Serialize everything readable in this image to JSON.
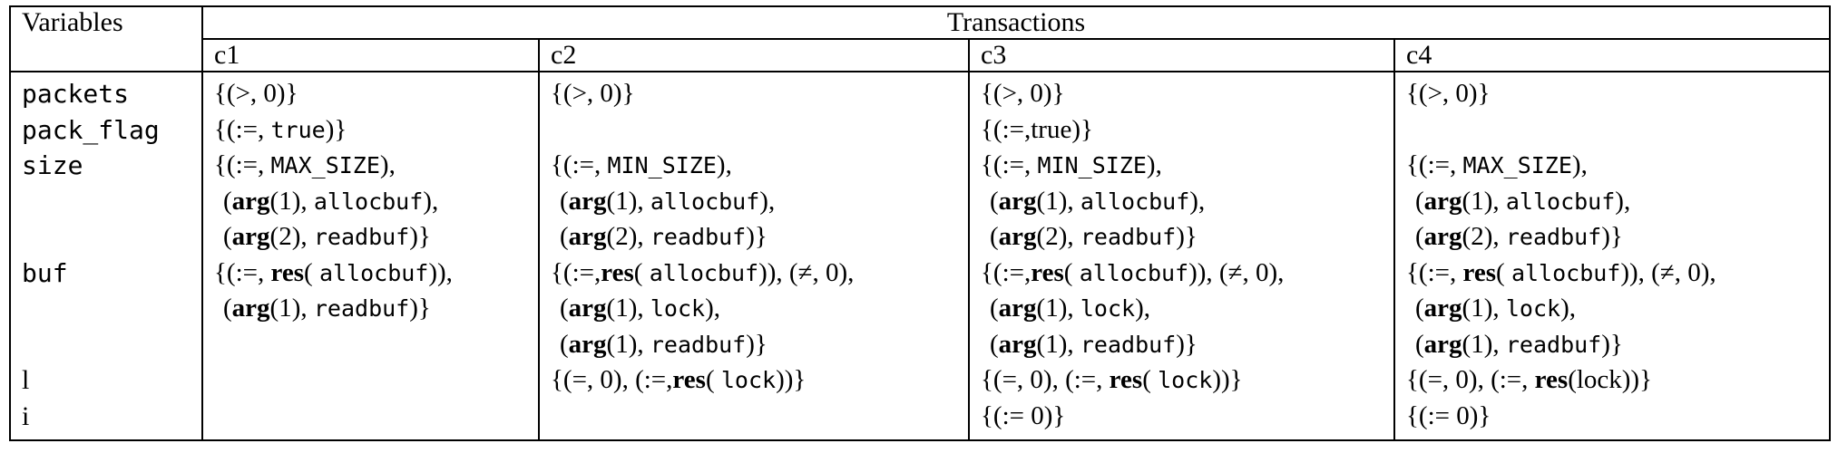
{
  "header": {
    "variables": "Variables",
    "transactions": "Transactions",
    "columns": [
      "c1",
      "c2",
      "c3",
      "c4"
    ]
  },
  "variables": [
    "packets",
    "pack_flag",
    "size",
    "buf",
    "l",
    "i"
  ],
  "cells": {
    "c1": [
      {
        "type": "plain",
        "text": "{(>, 0)}"
      },
      {
        "type": "assign_tt",
        "pre": "{(:=, ",
        "tt": "true",
        "post": ")}"
      },
      {
        "type": "assign_tt",
        "pre": "{(:=, ",
        "tt": "MAX_SIZE",
        "post": "),"
      },
      {
        "type": "arg",
        "open": "(",
        "kw": "arg",
        "mid": "(1), ",
        "tt": "allocbuf",
        "post": "),"
      },
      {
        "type": "arg",
        "open": "(",
        "kw": "arg",
        "mid": "(2), ",
        "tt": "readbuf",
        "post": ")}"
      },
      {
        "type": "res",
        "pre": "{(:=, ",
        "kw": "res",
        "mid": "( ",
        "tt": "allocbuf",
        "post": ")),"
      },
      {
        "type": "arg",
        "open": "(",
        "kw": "arg",
        "mid": "(1), ",
        "tt": "readbuf",
        "post": ")}"
      },
      {
        "type": "blank"
      },
      {
        "type": "blank"
      },
      {
        "type": "blank"
      }
    ],
    "c2": [
      {
        "type": "plain",
        "text": "{(>, 0)}"
      },
      {
        "type": "blank"
      },
      {
        "type": "assign_tt",
        "pre": "{(:=, ",
        "tt": "MIN_SIZE",
        "post": "),"
      },
      {
        "type": "arg",
        "open": "(",
        "kw": "arg",
        "mid": "(1), ",
        "tt": "allocbuf",
        "post": "),"
      },
      {
        "type": "arg",
        "open": "(",
        "kw": "arg",
        "mid": "(2), ",
        "tt": "readbuf",
        "post": ")}"
      },
      {
        "type": "res",
        "pre": "{(:=,",
        "kw": "res",
        "mid": "( ",
        "tt": "allocbuf",
        "post": ")), (≠, 0),"
      },
      {
        "type": "arg",
        "open": "(",
        "kw": "arg",
        "mid": "(1), ",
        "tt": "lock",
        "post": "),"
      },
      {
        "type": "arg",
        "open": "(",
        "kw": "arg",
        "mid": "(1), ",
        "tt": "readbuf",
        "post": ")}"
      },
      {
        "type": "res",
        "pre": "{(=, 0), (:=,",
        "kw": "res",
        "mid": "( ",
        "tt": "lock",
        "post": "))}"
      },
      {
        "type": "blank"
      }
    ],
    "c3": [
      {
        "type": "plain",
        "text": "{(>, 0)}"
      },
      {
        "type": "plain",
        "text": "{(:=,true)}"
      },
      {
        "type": "assign_tt",
        "pre": "{(:=, ",
        "tt": "MIN_SIZE",
        "post": "),"
      },
      {
        "type": "arg",
        "open": "(",
        "kw": "arg",
        "mid": "(1), ",
        "tt": "allocbuf",
        "post": "),"
      },
      {
        "type": "arg",
        "open": "(",
        "kw": "arg",
        "mid": "(2), ",
        "tt": "readbuf",
        "post": ")}"
      },
      {
        "type": "res",
        "pre": "{(:=,",
        "kw": "res",
        "mid": "( ",
        "tt": "allocbuf",
        "post": ")), (≠, 0),"
      },
      {
        "type": "arg",
        "open": "(",
        "kw": "arg",
        "mid": "(1), ",
        "tt": "lock",
        "post": "),"
      },
      {
        "type": "arg",
        "open": "(",
        "kw": "arg",
        "mid": "(1), ",
        "tt": "readbuf",
        "post": ")}"
      },
      {
        "type": "res",
        "pre": "{(=, 0), (:=, ",
        "kw": "res",
        "mid": "( ",
        "tt": "lock",
        "post": "))}"
      },
      {
        "type": "plain",
        "text": "{(:= 0)}"
      }
    ],
    "c4": [
      {
        "type": "plain",
        "text": "{(>, 0)}"
      },
      {
        "type": "blank"
      },
      {
        "type": "assign_tt",
        "pre": "{(:=, ",
        "tt": "MAX_SIZE",
        "post": "),"
      },
      {
        "type": "arg",
        "open": "(",
        "kw": "arg",
        "mid": "(1), ",
        "tt": "allocbuf",
        "post": "),"
      },
      {
        "type": "arg",
        "open": "(",
        "kw": "arg",
        "mid": "(2), ",
        "tt": "readbuf",
        "post": ")}"
      },
      {
        "type": "res",
        "pre": "{(:=, ",
        "kw": "res",
        "mid": "( ",
        "tt": "allocbuf",
        "post": ")), (≠, 0),"
      },
      {
        "type": "arg",
        "open": "(",
        "kw": "arg",
        "mid": "(1), ",
        "tt": "lock",
        "post": "),"
      },
      {
        "type": "arg",
        "open": "(",
        "kw": "arg",
        "mid": "(1), ",
        "tt": "readbuf",
        "post": ")}"
      },
      {
        "type": "res",
        "pre": "{(=, 0), (:=, ",
        "kw": "res",
        "mid": "(lock))}",
        "tt": "",
        "post": ""
      },
      {
        "type": "plain",
        "text": "{(:= 0)}"
      }
    ]
  }
}
